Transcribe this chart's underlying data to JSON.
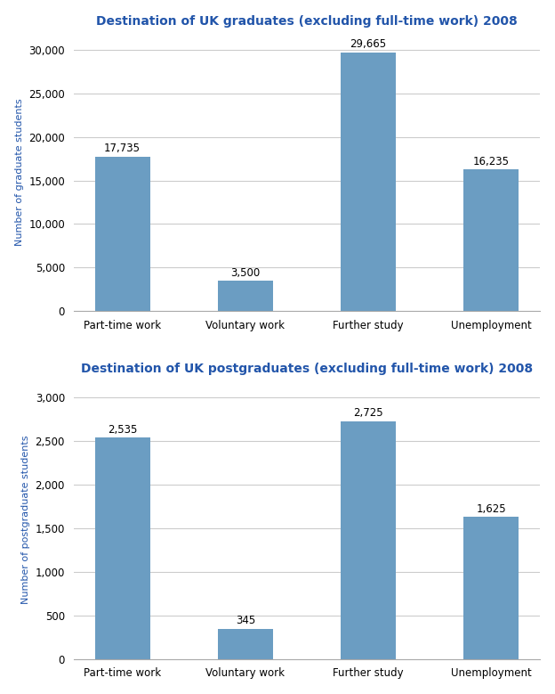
{
  "grad_title": "Destination of UK graduates (excluding full-time work) 2008",
  "postgrad_title": "Destination of UK postgraduates (excluding full-time work) 2008",
  "categories": [
    "Part-time work",
    "Voluntary work",
    "Further study",
    "Unemployment"
  ],
  "grad_values": [
    17735,
    3500,
    29665,
    16235
  ],
  "grad_labels": [
    "17,735",
    "3,500",
    "29,665",
    "16,235"
  ],
  "postgrad_values": [
    2535,
    345,
    2725,
    1625
  ],
  "postgrad_labels": [
    "2,535",
    "345",
    "2,725",
    "1,625"
  ],
  "bar_color": "#6b9dc2",
  "title_color": "#2255aa",
  "axis_color": "#555555",
  "ylabel_grad": "Number of graduate students",
  "ylabel_postgrad": "Number of postgraduate students",
  "grad_ylim": [
    0,
    32000
  ],
  "postgrad_ylim": [
    0,
    3200
  ],
  "grad_yticks": [
    0,
    5000,
    10000,
    15000,
    20000,
    25000,
    30000
  ],
  "postgrad_yticks": [
    0,
    500,
    1000,
    1500,
    2000,
    2500,
    3000
  ],
  "background_color": "#ffffff",
  "label_fontsize": 8.5,
  "title_fontsize": 10,
  "ylabel_fontsize": 8,
  "xlabel_fontsize": 8.5,
  "ytick_fontsize": 8.5,
  "bar_width": 0.45
}
